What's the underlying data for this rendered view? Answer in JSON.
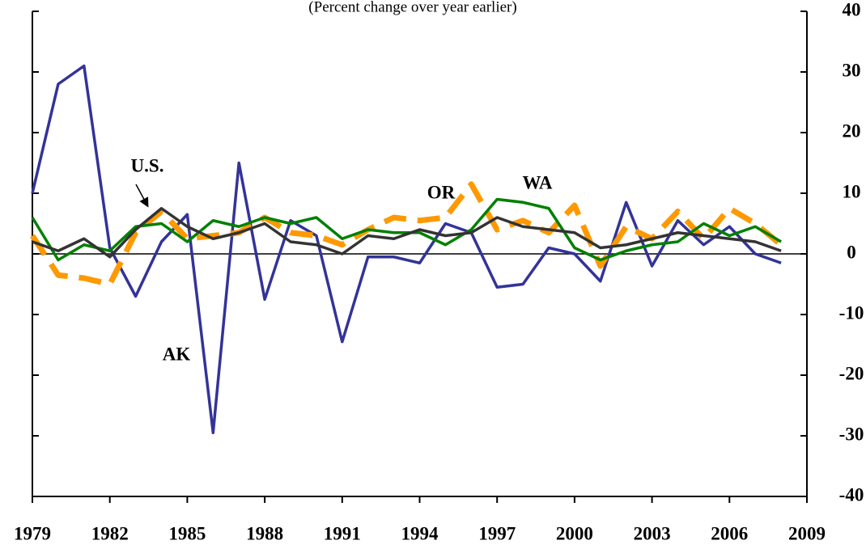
{
  "chart_data": {
    "type": "line",
    "title": "(Percent change over year earlier)",
    "x": [
      1979,
      1980,
      1981,
      1982,
      1983,
      1984,
      1985,
      1986,
      1987,
      1988,
      1989,
      1990,
      1991,
      1992,
      1993,
      1994,
      1995,
      1996,
      1997,
      1998,
      1999,
      2000,
      2001,
      2002,
      2003,
      2004,
      2005,
      2006,
      2007,
      2008
    ],
    "series": [
      {
        "name": "AK",
        "color": "#333399",
        "dash": false,
        "values": [
          10,
          28,
          31,
          1,
          -7,
          2,
          6.5,
          -29.5,
          15,
          -7.5,
          5.5,
          3,
          -14.5,
          -0.5,
          -0.5,
          -1.5,
          5,
          3.5,
          -5.5,
          -5,
          1,
          0,
          -4.5,
          8.5,
          -2,
          5.5,
          1.5,
          4.5,
          0,
          -1.5
        ]
      },
      {
        "name": "OR",
        "color": "#ff9900",
        "dash": true,
        "values": [
          3,
          -3.5,
          -4,
          -5,
          3.5,
          7,
          2.5,
          3,
          3.5,
          6,
          3.5,
          3,
          1.5,
          4,
          6,
          5.5,
          6,
          11.5,
          4,
          5.5,
          3.5,
          8,
          -2,
          4.5,
          2.5,
          7,
          2.5,
          7.5,
          5,
          1.5
        ]
      },
      {
        "name": "WA",
        "color": "#008000",
        "dash": false,
        "values": [
          6,
          -1,
          1.5,
          0.5,
          4.5,
          5,
          2,
          5.5,
          4.5,
          6,
          5,
          6,
          2.5,
          4,
          3.5,
          3.5,
          1.5,
          4,
          9,
          8.5,
          7.5,
          1,
          -1,
          0.5,
          1.5,
          2,
          5,
          3,
          4.5,
          2
        ]
      },
      {
        "name": "U.S.",
        "color": "#333333",
        "dash": false,
        "values": [
          2,
          0.5,
          2.5,
          -0.5,
          4,
          7.5,
          4.5,
          2.5,
          3.5,
          5,
          2,
          1.5,
          0,
          3,
          2.5,
          4,
          3,
          3.5,
          6,
          4.5,
          4,
          3.5,
          1,
          1.5,
          2.5,
          3.5,
          3,
          2.5,
          2,
          0.5
        ]
      }
    ],
    "annotations": [
      "U.S.",
      "OR",
      "WA",
      "AK"
    ],
    "xlim": [
      1979,
      2009
    ],
    "xticks": [
      1979,
      1982,
      1985,
      1988,
      1991,
      1994,
      1997,
      2000,
      2003,
      2006,
      2009
    ],
    "ylim": [
      -40,
      40
    ],
    "yticks": [
      -40,
      -30,
      -20,
      -10,
      0,
      10,
      20,
      30,
      40
    ],
    "y_axis_side": "right",
    "grid": false
  }
}
